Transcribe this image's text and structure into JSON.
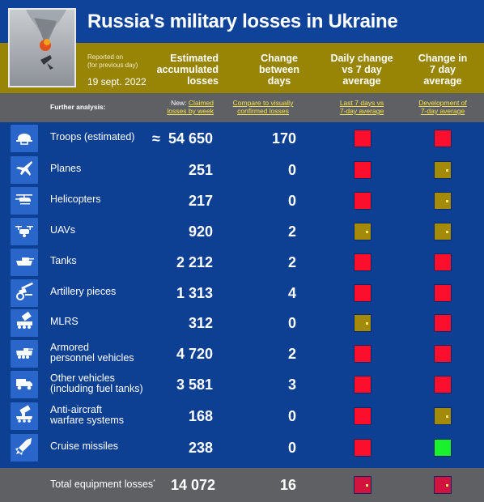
{
  "title": "Russia's military losses in Ukraine",
  "reported_on": "Reported on",
  "reported_note": "(for previous day)",
  "date": "19 sept. 2022",
  "headers": {
    "estimated": "Estimated\naccumulated\nlosses",
    "change": "Change\nbetween\ndays",
    "daily": "Daily change\nvs 7 day\naverage",
    "seven_day": "Change in\n7 day\naverage"
  },
  "further_analysis": "Further analysis:",
  "links": {
    "new_prefix": "New:",
    "claimed_line1": "Claimed",
    "claimed_line2": "losses by week",
    "compare_line1": "Compare to visually",
    "compare_line2": "confirmed losses",
    "last7_line1": "Last 7 days vs",
    "last7_line2": "7-day average",
    "dev_line1": "Development of",
    "dev_line2": "7-day average"
  },
  "approx_symbol": "≈",
  "rows": [
    {
      "label": "Troops (estimated)",
      "label2": "",
      "value": "54 650",
      "change": "170",
      "daily": "red",
      "seven": "red",
      "icon": "helmet-icon"
    },
    {
      "label": "Planes",
      "label2": "",
      "value": "251",
      "change": "0",
      "daily": "red",
      "seven": "gold",
      "icon": "plane-icon"
    },
    {
      "label": "Helicopters",
      "label2": "",
      "value": "217",
      "change": "0",
      "daily": "red",
      "seven": "gold",
      "icon": "helicopter-icon"
    },
    {
      "label": "UAVs",
      "label2": "",
      "value": "920",
      "change": "2",
      "daily": "gold",
      "seven": "gold",
      "icon": "drone-icon"
    },
    {
      "label": "Tanks",
      "label2": "",
      "value": "2 212",
      "change": "2",
      "daily": "red",
      "seven": "red",
      "icon": "tank-icon"
    },
    {
      "label": "Artillery pieces",
      "label2": "",
      "value": "1 313",
      "change": "4",
      "daily": "red",
      "seven": "red",
      "icon": "artillery-icon"
    },
    {
      "label": "MLRS",
      "label2": "",
      "value": "312",
      "change": "0",
      "daily": "gold",
      "seven": "red",
      "icon": "mlrs-icon"
    },
    {
      "label": "Armored",
      "label2": "personnel vehicles",
      "value": "4 720",
      "change": "2",
      "daily": "red",
      "seven": "red",
      "icon": "apc-icon"
    },
    {
      "label": "Other vehicles",
      "label2": "(including fuel tanks)",
      "value": "3 581",
      "change": "3",
      "daily": "red",
      "seven": "red",
      "icon": "truck-icon"
    },
    {
      "label": "Anti-aircraft",
      "label2": "warfare systems",
      "value": "168",
      "change": "0",
      "daily": "red",
      "seven": "gold",
      "icon": "anti-aircraft-icon"
    },
    {
      "label": "Cruise missiles",
      "label2": "",
      "value": "238",
      "change": "0",
      "daily": "red",
      "seven": "green",
      "icon": "missile-icon"
    }
  ],
  "total": {
    "label": "Total equipment losses",
    "marker": "*",
    "value": "14 072",
    "change": "16",
    "daily": "crim",
    "seven": "crim"
  },
  "colors": {
    "red": "#fb0f2c",
    "gold": "#a38a0a",
    "green": "#19f12d",
    "crimson": "#d3133f",
    "blue": "#0e3f95",
    "header_gold": "#998505"
  }
}
